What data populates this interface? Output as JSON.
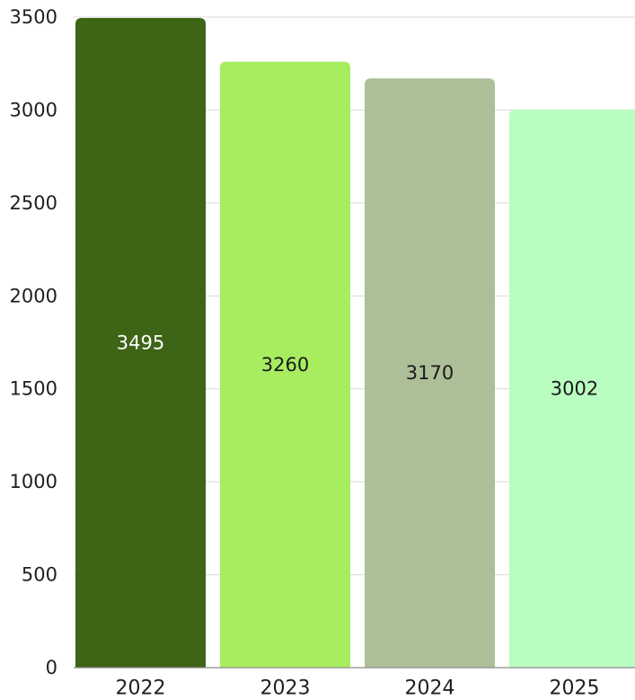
{
  "chart_data": {
    "type": "bar",
    "title": "",
    "xlabel": "",
    "ylabel": "",
    "categories": [
      "2022",
      "2023",
      "2024",
      "2025"
    ],
    "values": [
      3495,
      3260,
      3170,
      3002
    ],
    "value_labels": [
      "3495",
      "3260",
      "3170",
      "3002"
    ],
    "bar_colors": [
      "#3e6416",
      "#a8ec60",
      "#adbf98",
      "#b9fdc0"
    ],
    "data_label_colors": [
      "#ffffff",
      "#1a1a1a",
      "#1a1a1a",
      "#1a1a1a"
    ],
    "ylim": [
      0,
      3500
    ],
    "yticks": [
      0,
      500,
      1000,
      1500,
      2000,
      2500,
      3000,
      3500
    ],
    "ytick_labels": [
      "0",
      "500",
      "1000",
      "1500",
      "2000",
      "2500",
      "3000",
      "3500"
    ],
    "grid": true,
    "legend": "none"
  }
}
